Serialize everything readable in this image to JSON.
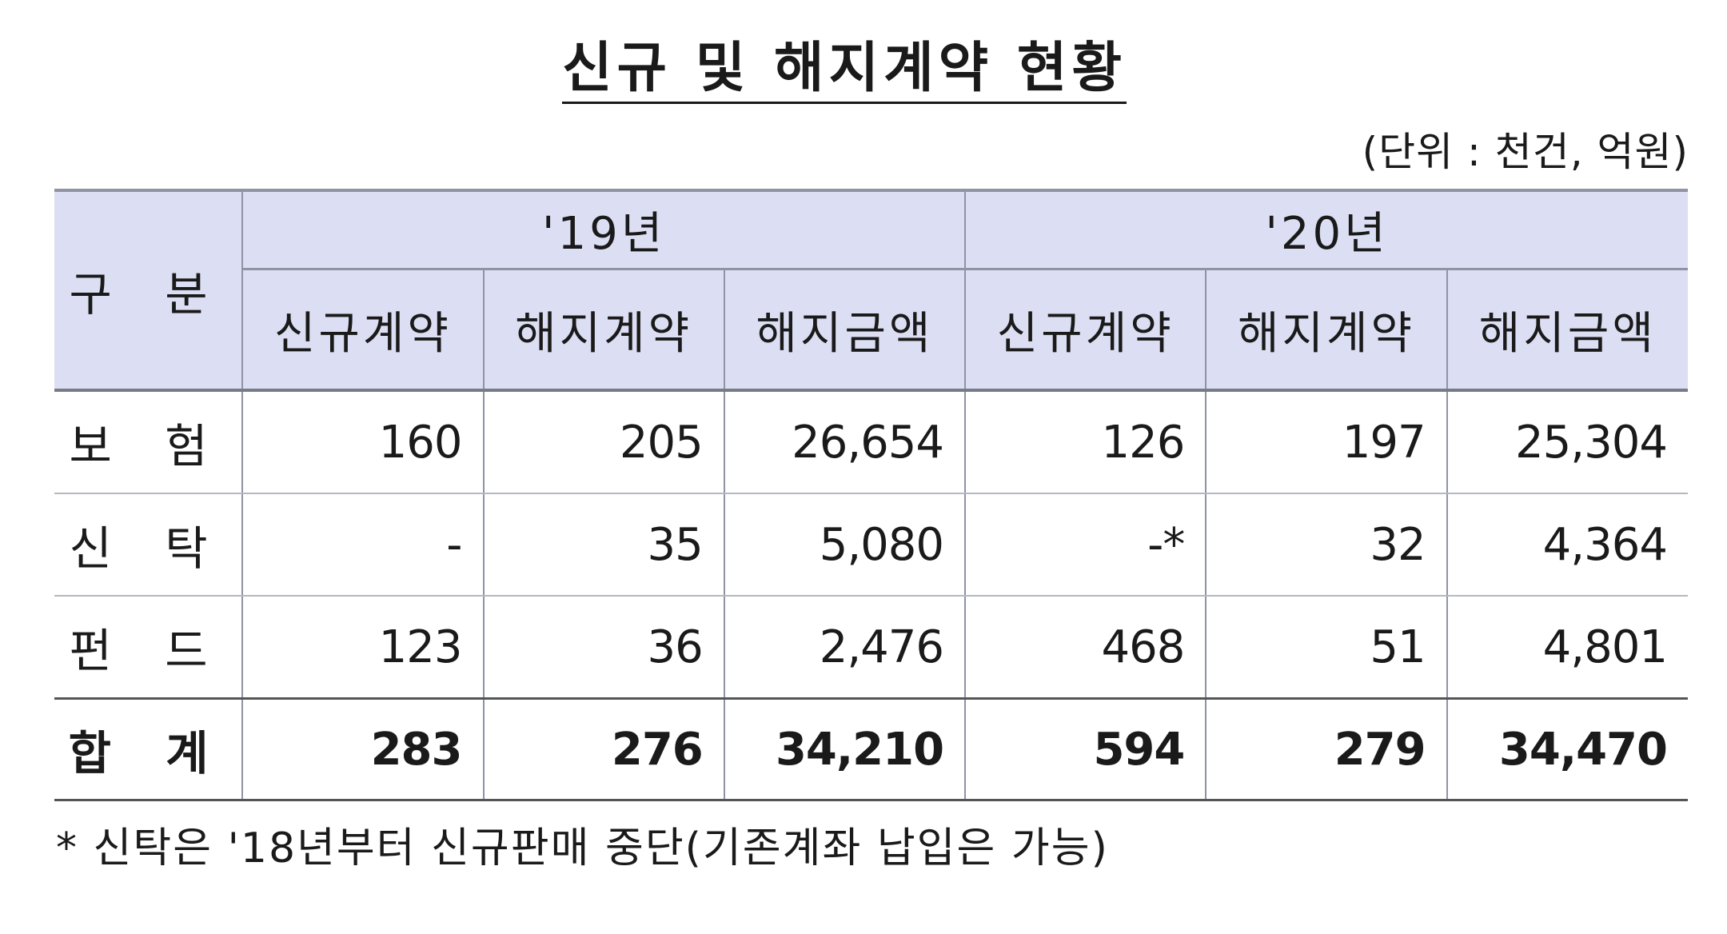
{
  "title": "신규 및 해지계약 현황",
  "unit": "(단위 : 천건, 억원)",
  "table": {
    "corner": "구 분",
    "years": [
      "'19년",
      "'20년"
    ],
    "sub_headers": [
      "신규계약",
      "해지계약",
      "해지금액",
      "신규계약",
      "해지계약",
      "해지금액"
    ],
    "rows": [
      {
        "label": "보 험",
        "values": [
          "160",
          "205",
          "26,654",
          "126",
          "197",
          "25,304"
        ]
      },
      {
        "label": "신 탁",
        "values": [
          "-",
          "35",
          "5,080",
          "-*",
          "32",
          "4,364"
        ]
      },
      {
        "label": "펀 드",
        "values": [
          "123",
          "36",
          "2,476",
          "468",
          "51",
          "4,801"
        ]
      },
      {
        "label": "합 계",
        "values": [
          "283",
          "276",
          "34,210",
          "594",
          "279",
          "34,470"
        ]
      }
    ]
  },
  "note": "* 신탁은 '18년부터 신규판매 중단(기존계좌 납입은 가능)"
}
